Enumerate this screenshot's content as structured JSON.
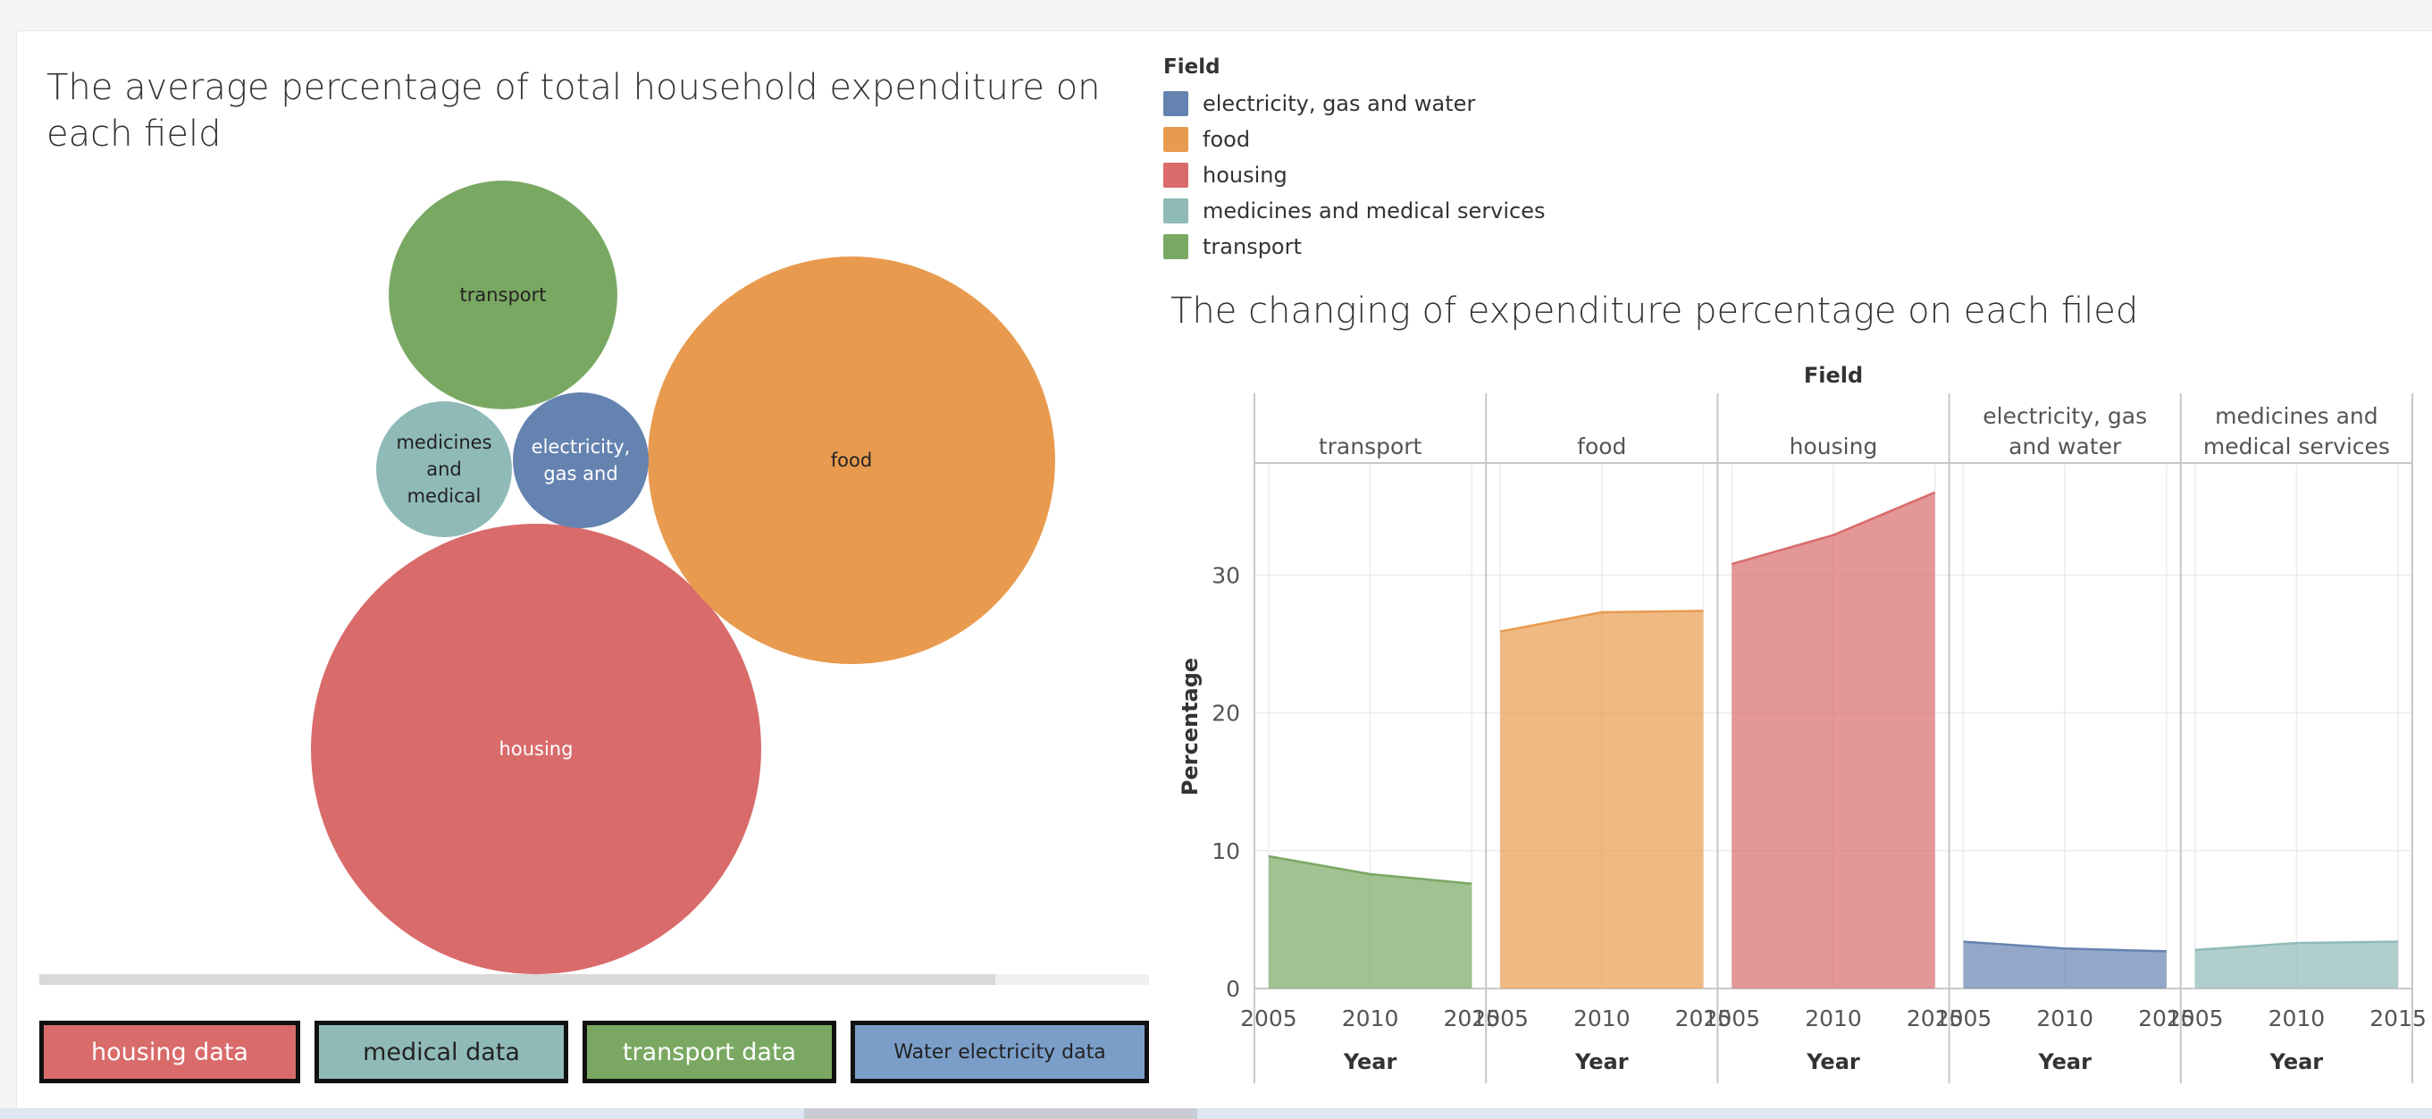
{
  "left_panel": {
    "title": "The average percentage of total household expenditure on each field",
    "buttons": [
      {
        "label": "housing data",
        "color": "#d96b6b",
        "text_color": "#ffffff"
      },
      {
        "label": "medical data",
        "color": "#8fbab7",
        "text_color": "#222222"
      },
      {
        "label": "transport data",
        "color": "#7aa862",
        "text_color": "#ffffff"
      },
      {
        "label": "Water electricity data",
        "color": "#7b9ec9",
        "text_color": "#222222"
      }
    ]
  },
  "legend": {
    "title": "Field",
    "items": [
      {
        "label": "electricity, gas and water",
        "color": "#6583b0"
      },
      {
        "label": "food",
        "color": "#e89b4f"
      },
      {
        "label": "housing",
        "color": "#d96b6b"
      },
      {
        "label": "medicines and medical services",
        "color": "#8fbab7"
      },
      {
        "label": "transport",
        "color": "#79a863"
      }
    ]
  },
  "right_panel": {
    "title": "The changing of expenditure percentage on each filed"
  },
  "chart_data": [
    {
      "type": "bubble",
      "title": "The average percentage of total household expenditure on each field",
      "bubbles": [
        {
          "label": "housing",
          "value": 33.0,
          "color": "#d96b6b",
          "text_color": "#ffffff"
        },
        {
          "label": "food",
          "value": 27.0,
          "color": "#e89b4f",
          "text_color": "#222222"
        },
        {
          "label": "transport",
          "value": 8.5,
          "color": "#79a863",
          "text_color": "#222222"
        },
        {
          "label": "medicines and medical",
          "value": 3.0,
          "color": "#8fbab7",
          "text_color": "#222222"
        },
        {
          "label": "electricity, gas and",
          "value": 3.0,
          "color": "#6583b0",
          "text_color": "#ffffff"
        }
      ]
    },
    {
      "type": "area",
      "title": "The changing of expenditure percentage on each filed",
      "column_header": "Field",
      "xlabel": "Year",
      "ylabel": "Percentage",
      "ylim": [
        0,
        38
      ],
      "yticks": [
        0,
        10,
        20,
        30
      ],
      "x_range": [
        2004.3,
        2015.7
      ],
      "xticks": [
        2005,
        2010,
        2015
      ],
      "grid": true,
      "panels": [
        {
          "name": "transport",
          "color": "#79a863",
          "x": [
            2005,
            2010,
            2015
          ],
          "values": [
            9.6,
            8.3,
            7.6
          ]
        },
        {
          "name": "food",
          "color": "#e89b4f",
          "x": [
            2005,
            2010,
            2015
          ],
          "values": [
            25.9,
            27.3,
            27.4
          ]
        },
        {
          "name": "housing",
          "color": "#d96b6b",
          "x": [
            2005,
            2010,
            2015
          ],
          "values": [
            30.8,
            32.9,
            36.0
          ]
        },
        {
          "name": "electricity, gas and water",
          "color": "#6583b0",
          "x": [
            2005,
            2010,
            2015
          ],
          "values": [
            3.4,
            2.9,
            2.7
          ]
        },
        {
          "name": "medicines and medical services",
          "color": "#8fbab7",
          "x": [
            2005,
            2010,
            2015
          ],
          "values": [
            2.8,
            3.3,
            3.4
          ]
        }
      ]
    }
  ]
}
